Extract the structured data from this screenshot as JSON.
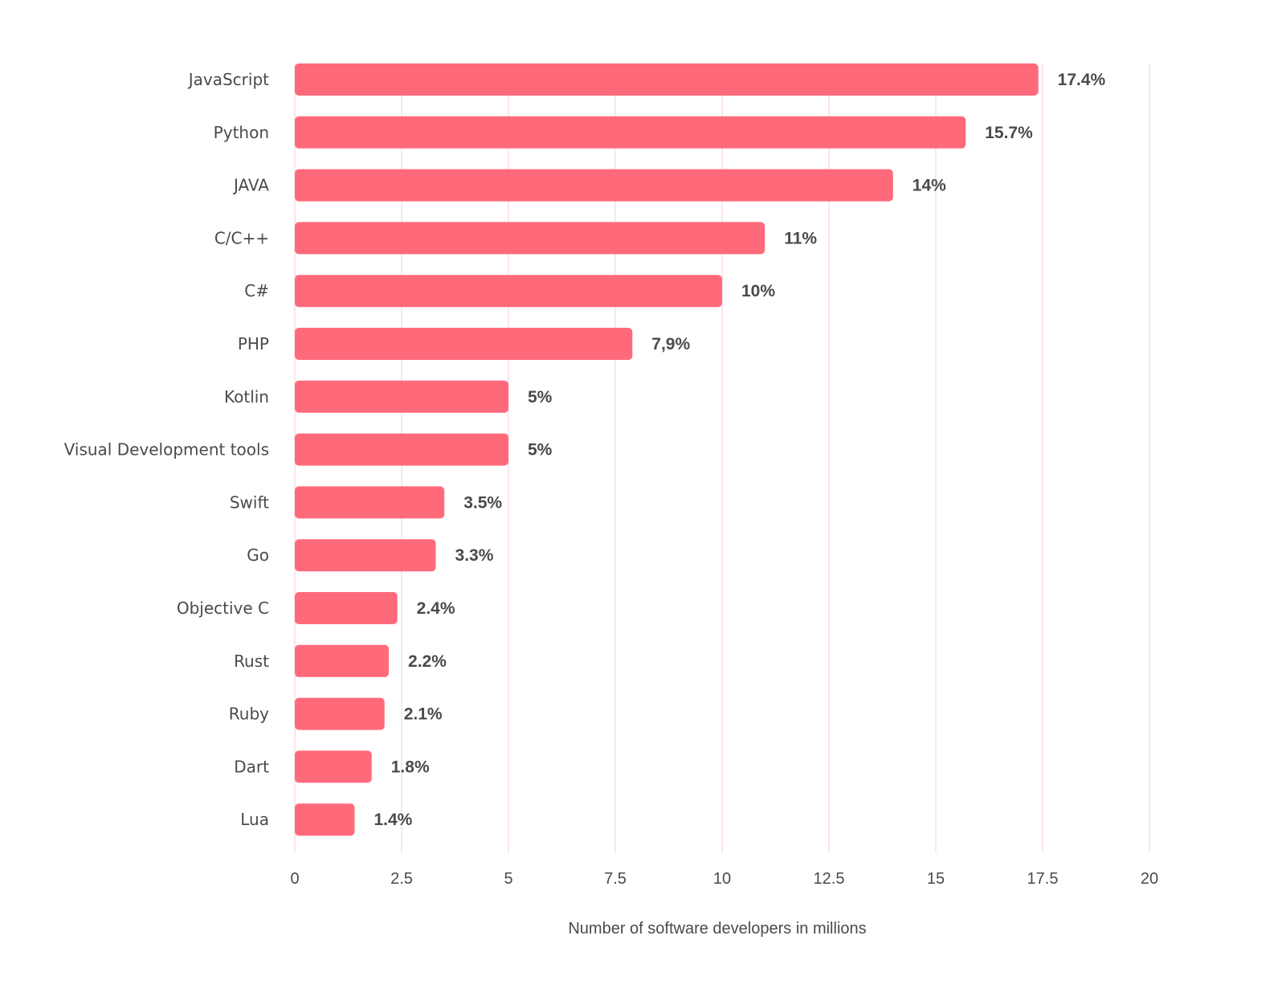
{
  "chart_data": {
    "type": "bar",
    "orientation": "horizontal",
    "categories": [
      "JavaScript",
      "Python",
      "JAVA",
      "C/C++",
      "C#",
      "PHP",
      "Kotlin",
      "Visual Development tools",
      "Swift",
      "Go",
      "Objective C",
      "Rust",
      "Ruby",
      "Dart",
      "Lua"
    ],
    "values": [
      17.4,
      15.7,
      14,
      11,
      10,
      7.9,
      5,
      5,
      3.5,
      3.3,
      2.4,
      2.2,
      2.1,
      1.8,
      1.4
    ],
    "data_labels": [
      "17.4%",
      "15.7%",
      "14%",
      "11%",
      "10%",
      "7,9%",
      "5%",
      "5%",
      "3.5%",
      "3.3%",
      "2.4%",
      "2.2%",
      "2.1%",
      "1.8%",
      "1.4%"
    ],
    "xlabel": "Number of software developers in millions",
    "ylabel": "",
    "xlim": [
      0,
      20
    ],
    "xticks": [
      "0",
      "2.5",
      "5",
      "7.5",
      "10",
      "12.5",
      "15",
      "17.5",
      "20"
    ],
    "grid": "vertical",
    "colors": {
      "bar": "#ff6a7b",
      "grid": "#f9d9e3",
      "text": "#4a4a4a"
    }
  }
}
